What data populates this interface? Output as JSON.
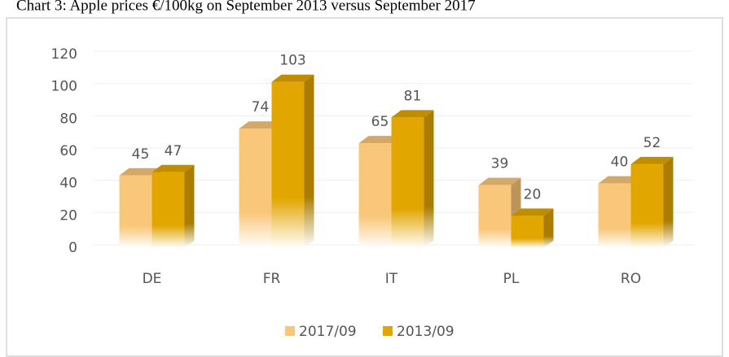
{
  "chart_data": {
    "type": "bar3d",
    "title": "Chart 3: Apple prices €/100kg on September 2013 versus September 2017",
    "categories": [
      "DE",
      "FR",
      "IT",
      "PL",
      "RO"
    ],
    "series": [
      {
        "name": "2017/09",
        "color": "#f9c77a",
        "values": [
          45,
          74,
          65,
          39,
          40
        ]
      },
      {
        "name": "2013/09",
        "color": "#e2a600",
        "values": [
          47,
          103,
          81,
          20,
          52
        ]
      }
    ],
    "ylim": [
      0,
      120
    ],
    "yticks": [
      0,
      20,
      40,
      60,
      80,
      100,
      120
    ],
    "grid": true,
    "legend": "bottom"
  }
}
